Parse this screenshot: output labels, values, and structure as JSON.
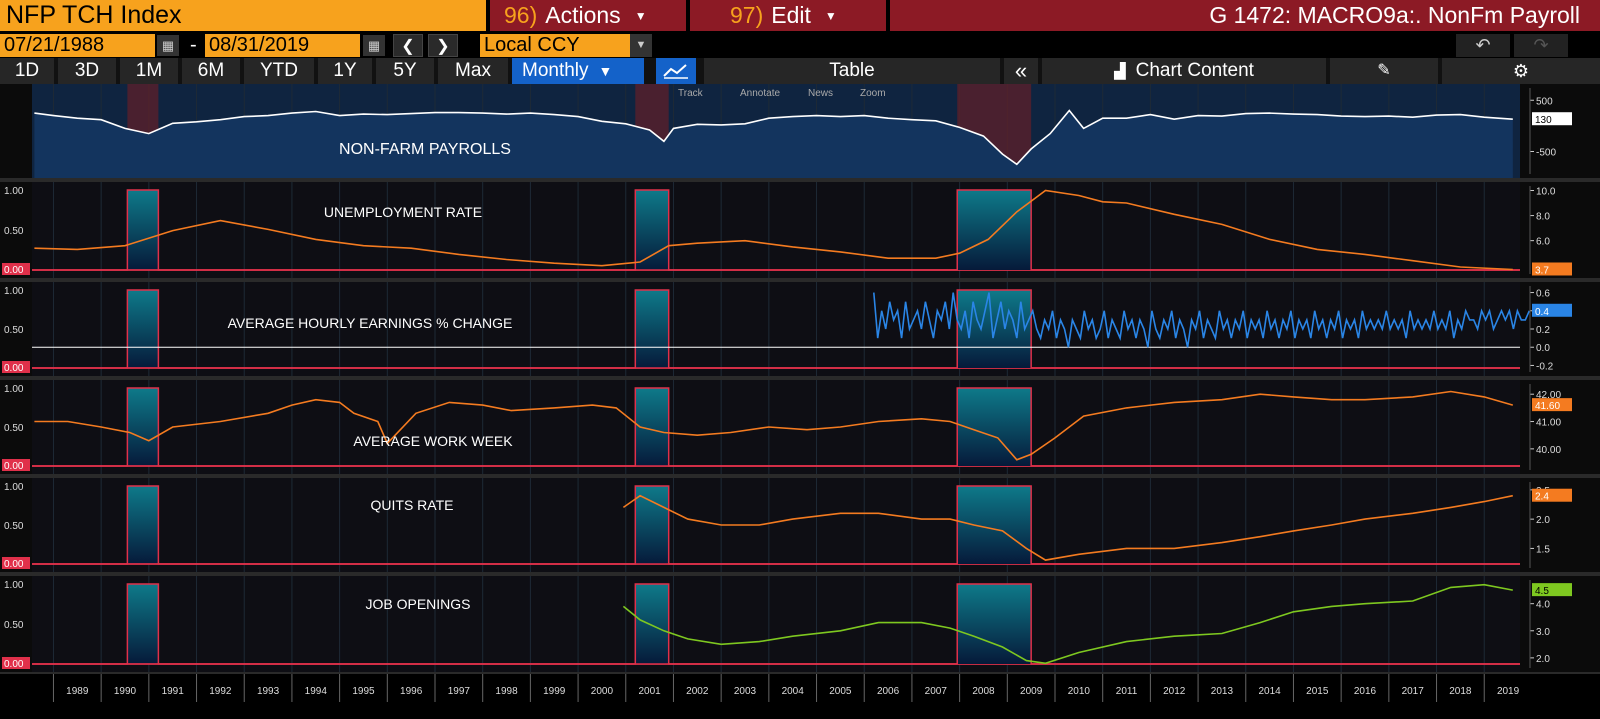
{
  "header": {
    "ticker": "NFP TCH Index",
    "actions_num": "96)",
    "actions_label": "Actions",
    "edit_num": "97)",
    "edit_label": "Edit",
    "title": "G 1472: MACRO9a:. NonFm Payroll"
  },
  "dates": {
    "start": "07/21/1988",
    "separator": "-",
    "end": "08/31/2019"
  },
  "currency": "Local CCY",
  "periods": [
    "1D",
    "3D",
    "1M",
    "6M",
    "YTD",
    "1Y",
    "5Y",
    "Max"
  ],
  "frequency": "Monthly",
  "toolbar": {
    "table_label": "Table",
    "collapse_icon": "double-chevron-left-icon",
    "chart_content_label": "Chart Content",
    "track": "Track",
    "annotate": "Annotate",
    "news": "News",
    "zoom": "Zoom"
  },
  "years": [
    "1989",
    "1990",
    "1991",
    "1992",
    "1993",
    "1994",
    "1995",
    "1996",
    "1997",
    "1998",
    "1999",
    "2000",
    "2001",
    "2002",
    "2003",
    "2004",
    "2005",
    "2006",
    "2007",
    "2008",
    "2009",
    "2010",
    "2011",
    "2012",
    "2013",
    "2014",
    "2015",
    "2016",
    "2017",
    "2018",
    "2019"
  ],
  "recessions": [
    [
      1990.55,
      1991.2
    ],
    [
      2001.2,
      2001.9
    ],
    [
      2007.95,
      2009.5
    ]
  ],
  "colors": {
    "orange": "#f47b20",
    "blue": "#2a85e6",
    "green": "#7ec820",
    "white": "#ffffff",
    "recession": "#0e7a8a",
    "panel_bg": "#0b0b0b",
    "ticker_bg": "#f7a21d",
    "menu_bg": "#8c1a25"
  },
  "chart_data": [
    {
      "type": "area",
      "label": "NON-FARM PAYROLLS",
      "color": "#ffffff",
      "axis_ticks": [
        "500",
        "-500"
      ],
      "last_value": "130",
      "ylim": [
        -900,
        700
      ],
      "x": [
        1988.6,
        1989.0,
        1989.5,
        1990.0,
        1990.5,
        1991.0,
        1991.5,
        1992.0,
        1992.5,
        1993.0,
        1993.5,
        1994.0,
        1994.5,
        1995.0,
        1995.5,
        1996.0,
        1996.5,
        1997.0,
        1997.5,
        1998.0,
        1998.5,
        1999.0,
        1999.5,
        2000.0,
        2000.5,
        2001.0,
        2001.5,
        2001.8,
        2002.0,
        2002.5,
        2003.0,
        2003.5,
        2004.0,
        2004.5,
        2005.0,
        2005.5,
        2006.0,
        2006.5,
        2007.0,
        2007.5,
        2008.0,
        2008.5,
        2008.9,
        2009.2,
        2009.5,
        2009.9,
        2010.3,
        2010.6,
        2011.0,
        2011.5,
        2012.0,
        2012.5,
        2013.0,
        2013.5,
        2014.0,
        2014.5,
        2015.0,
        2015.5,
        2016.0,
        2016.5,
        2017.0,
        2017.5,
        2018.0,
        2018.5,
        2019.0,
        2019.6
      ],
      "values": [
        250,
        200,
        150,
        120,
        -50,
        -150,
        50,
        80,
        120,
        180,
        200,
        250,
        280,
        200,
        230,
        220,
        240,
        260,
        260,
        250,
        230,
        250,
        220,
        180,
        90,
        40,
        -80,
        -300,
        -50,
        30,
        20,
        40,
        150,
        180,
        200,
        180,
        200,
        150,
        120,
        100,
        -30,
        -200,
        -550,
        -750,
        -450,
        -150,
        300,
        -50,
        150,
        150,
        220,
        130,
        200,
        190,
        240,
        250,
        230,
        220,
        190,
        180,
        190,
        170,
        210,
        220,
        170,
        130
      ]
    },
    {
      "type": "line",
      "label": "UNEMPLOYMENT RATE",
      "color": "#f47b20",
      "axis_ticks": [
        "10.0",
        "8.0",
        "6.0"
      ],
      "last_value": "3.7",
      "ylim": [
        3.5,
        10.2
      ],
      "x": [
        1988.6,
        1989.5,
        1990.5,
        1991.5,
        1992.5,
        1993.5,
        1994.5,
        1995.5,
        1996.5,
        1997.5,
        1998.5,
        1999.5,
        2000.5,
        2001.3,
        2001.9,
        2002.5,
        2003.5,
        2004.5,
        2005.5,
        2006.5,
        2007.5,
        2008.0,
        2008.6,
        2009.2,
        2009.8,
        2010.5,
        2011.0,
        2011.5,
        2012.5,
        2013.5,
        2014.5,
        2015.5,
        2016.5,
        2017.5,
        2018.5,
        2019.6
      ],
      "values": [
        5.4,
        5.3,
        5.6,
        6.8,
        7.6,
        6.9,
        6.1,
        5.6,
        5.4,
        4.9,
        4.5,
        4.2,
        4.0,
        4.3,
        5.6,
        5.8,
        6.0,
        5.5,
        5.1,
        4.6,
        4.6,
        5.0,
        6.1,
        8.3,
        10.0,
        9.6,
        9.1,
        9.0,
        8.1,
        7.3,
        6.1,
        5.3,
        4.9,
        4.4,
        3.9,
        3.7
      ]
    },
    {
      "type": "line",
      "label": "AVERAGE HOURLY EARNINGS % CHANGE",
      "color": "#2a85e6",
      "axis_ticks": [
        "0.6",
        "0.4",
        "0.2",
        "0.0",
        "-0.2"
      ],
      "last_value": "0.4",
      "ylim": [
        -0.25,
        0.65
      ],
      "x_start": 2006.2,
      "x_step": 0.0833,
      "values": [
        0.6,
        0.1,
        0.4,
        0.2,
        0.5,
        0.3,
        0.4,
        0.1,
        0.5,
        0.2,
        0.3,
        0.4,
        0.2,
        0.5,
        0.3,
        0.1,
        0.4,
        0.3,
        0.5,
        0.2,
        0.6,
        0.3,
        0.2,
        0.4,
        0.1,
        0.5,
        0.3,
        0.2,
        0.4,
        0.6,
        0.1,
        0.3,
        0.5,
        0.2,
        0.4,
        0.3,
        0.1,
        0.5,
        0.2,
        0.3,
        0.4,
        0.2,
        0.1,
        0.3,
        0.2,
        0.4,
        0.1,
        0.3,
        0.2,
        0.0,
        0.3,
        0.2,
        0.1,
        0.4,
        0.2,
        0.3,
        0.1,
        0.2,
        0.4,
        0.1,
        0.3,
        0.2,
        0.1,
        0.4,
        0.2,
        0.3,
        0.1,
        0.3,
        0.2,
        0.0,
        0.4,
        0.2,
        0.1,
        0.3,
        0.2,
        0.4,
        0.1,
        0.3,
        0.2,
        0.0,
        0.3,
        0.2,
        0.4,
        0.1,
        0.3,
        0.2,
        0.1,
        0.4,
        0.2,
        0.3,
        0.1,
        0.3,
        0.2,
        0.4,
        0.1,
        0.3,
        0.2,
        0.3,
        0.1,
        0.4,
        0.2,
        0.3,
        0.1,
        0.3,
        0.2,
        0.4,
        0.1,
        0.3,
        0.2,
        0.3,
        0.1,
        0.4,
        0.2,
        0.3,
        0.1,
        0.3,
        0.2,
        0.4,
        0.1,
        0.3,
        0.2,
        0.3,
        0.1,
        0.4,
        0.2,
        0.3,
        0.2,
        0.3,
        0.2,
        0.4,
        0.2,
        0.3,
        0.2,
        0.3,
        0.1,
        0.4,
        0.2,
        0.3,
        0.2,
        0.3,
        0.2,
        0.4,
        0.2,
        0.3,
        0.2,
        0.4,
        0.1,
        0.3,
        0.2,
        0.4,
        0.3,
        0.3,
        0.2,
        0.4,
        0.3,
        0.4,
        0.2,
        0.3,
        0.4,
        0.3,
        0.4,
        0.2,
        0.4,
        0.3,
        0.3,
        0.4
      ]
    },
    {
      "type": "line",
      "label": "AVERAGE WORK WEEK",
      "color": "#f47b20",
      "axis_ticks": [
        "42.00",
        "41.00",
        "40.00"
      ],
      "last_value": "41.60",
      "ylim": [
        39.3,
        42.3
      ],
      "x": [
        1988.6,
        1989.3,
        1990.0,
        1990.6,
        1991.0,
        1991.5,
        1992.5,
        1993.5,
        1994.0,
        1994.5,
        1995.0,
        1995.3,
        1995.8,
        1996.0,
        1996.6,
        1997.3,
        1998.0,
        1998.6,
        1999.5,
        2000.3,
        2000.8,
        2001.3,
        2001.8,
        2002.5,
        2003.2,
        2004.0,
        2004.8,
        2005.5,
        2006.3,
        2007.2,
        2007.8,
        2008.3,
        2008.8,
        2009.2,
        2009.5,
        2010.0,
        2010.6,
        2011.5,
        2012.5,
        2013.5,
        2014.3,
        2015.0,
        2015.8,
        2016.5,
        2017.5,
        2018.3,
        2019.0,
        2019.6
      ],
      "values": [
        41.0,
        41.0,
        40.8,
        40.6,
        40.3,
        40.8,
        41.0,
        41.3,
        41.6,
        41.8,
        41.7,
        41.3,
        41.0,
        40.2,
        41.3,
        41.7,
        41.6,
        41.4,
        41.5,
        41.6,
        41.5,
        40.8,
        40.6,
        40.5,
        40.6,
        40.8,
        40.7,
        40.8,
        41.0,
        41.1,
        41.0,
        40.7,
        40.4,
        39.6,
        39.8,
        40.4,
        41.2,
        41.5,
        41.7,
        41.8,
        42.0,
        41.9,
        41.8,
        41.8,
        41.9,
        42.1,
        41.9,
        41.6
      ]
    },
    {
      "type": "line",
      "label": "QUITS RATE",
      "color": "#f47b20",
      "axis_ticks": [
        "2.5",
        "2.0",
        "1.5"
      ],
      "last_value": "2.4",
      "ylim": [
        1.2,
        2.6
      ],
      "x": [
        2000.95,
        2001.3,
        2001.8,
        2002.3,
        2003.0,
        2003.8,
        2004.5,
        2005.5,
        2006.3,
        2007.2,
        2007.8,
        2008.3,
        2008.9,
        2009.4,
        2009.8,
        2010.5,
        2011.5,
        2012.5,
        2013.5,
        2014.3,
        2015.0,
        2015.8,
        2016.5,
        2017.5,
        2018.3,
        2019.0,
        2019.6
      ],
      "values": [
        2.2,
        2.4,
        2.2,
        2.0,
        1.9,
        1.9,
        2.0,
        2.1,
        2.1,
        2.0,
        2.0,
        1.9,
        1.8,
        1.5,
        1.3,
        1.4,
        1.5,
        1.5,
        1.6,
        1.7,
        1.8,
        1.9,
        2.0,
        2.1,
        2.2,
        2.3,
        2.4
      ]
    },
    {
      "type": "line",
      "label": "JOB OPENINGS",
      "color": "#7ec820",
      "axis_ticks": [
        "4.0",
        "3.0",
        "2.0"
      ],
      "last_value": "4.5",
      "ylim": [
        1.7,
        4.8
      ],
      "x": [
        2000.95,
        2001.3,
        2001.8,
        2002.3,
        2003.0,
        2003.8,
        2004.5,
        2005.5,
        2006.3,
        2007.2,
        2007.8,
        2008.3,
        2008.9,
        2009.4,
        2009.8,
        2010.5,
        2011.5,
        2012.5,
        2013.5,
        2014.3,
        2015.0,
        2015.8,
        2016.5,
        2017.5,
        2018.3,
        2019.0,
        2019.6
      ],
      "values": [
        3.9,
        3.4,
        3.0,
        2.7,
        2.5,
        2.6,
        2.8,
        3.0,
        3.3,
        3.3,
        3.1,
        2.8,
        2.4,
        1.9,
        1.8,
        2.2,
        2.6,
        2.8,
        2.9,
        3.3,
        3.7,
        3.9,
        4.0,
        4.1,
        4.6,
        4.7,
        4.5
      ]
    }
  ]
}
